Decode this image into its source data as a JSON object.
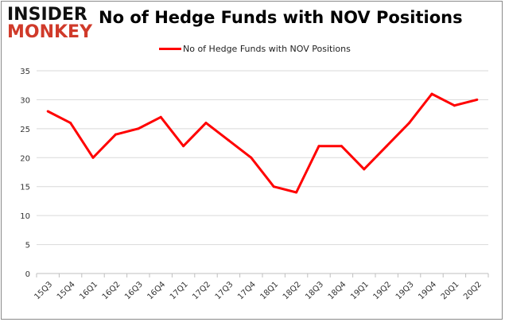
{
  "logo": {
    "line1": "INSIDER",
    "line2": "MONKEY"
  },
  "chart_data": {
    "type": "line",
    "title": "No of Hedge Funds with NOV Positions",
    "xlabel": "",
    "ylabel": "",
    "legend_position": "top-center",
    "grid": true,
    "ylim": [
      0,
      35
    ],
    "yticks": [
      0,
      5,
      10,
      15,
      20,
      25,
      30,
      35
    ],
    "categories": [
      "15Q3",
      "15Q4",
      "16Q1",
      "16Q2",
      "16Q3",
      "16Q4",
      "17Q1",
      "17Q2",
      "17Q3",
      "17Q4",
      "18Q1",
      "18Q2",
      "18Q3",
      "18Q4",
      "19Q1",
      "19Q2",
      "19Q3",
      "19Q4",
      "20Q1",
      "20Q2"
    ],
    "series": [
      {
        "name": "No of Hedge Funds with NOV Positions",
        "color": "#ff0000",
        "values": [
          28,
          26,
          20,
          24,
          25,
          27,
          22,
          26,
          23,
          20,
          15,
          14,
          22,
          22,
          18,
          22,
          26,
          31,
          29,
          30
        ]
      }
    ]
  }
}
